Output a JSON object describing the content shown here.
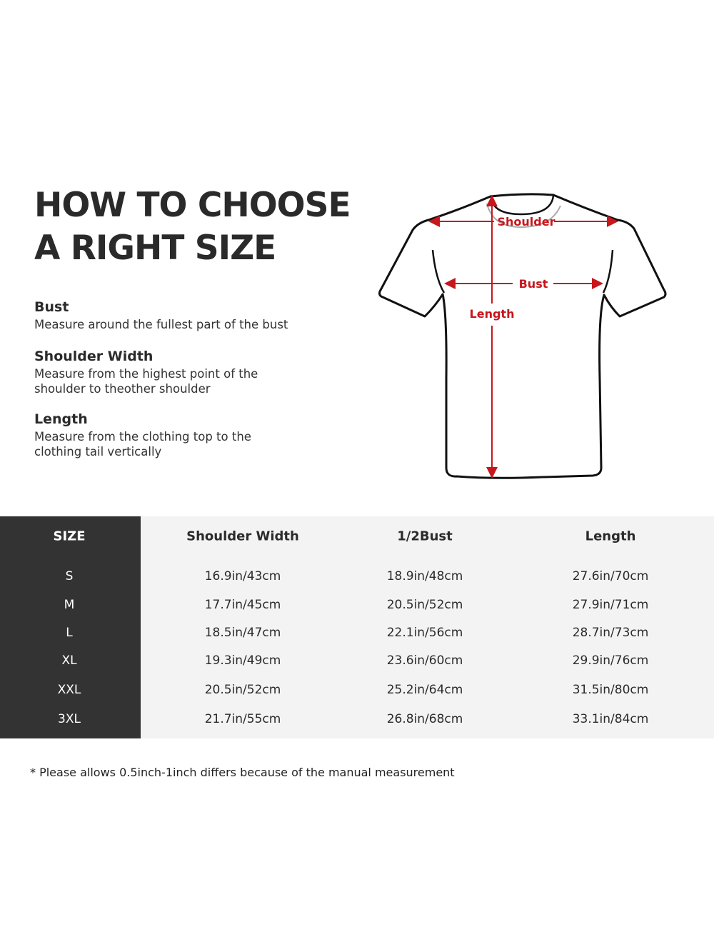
{
  "title": {
    "line1": "HOW TO CHOOSE",
    "line2": "A RIGHT SIZE"
  },
  "guide": [
    {
      "heading": "Bust",
      "text": "Measure around the fullest part of the bust"
    },
    {
      "heading": "Shoulder Width",
      "text": "Measure from the highest point of the shoulder to theother shoulder"
    },
    {
      "heading": "Length",
      "text": "Measure from the clothing top to the clothing tail vertically"
    }
  ],
  "diagram": {
    "shoulder_label": "Shoulder",
    "bust_label": "Bust",
    "length_label": "Length",
    "arrow_color": "#c8161d"
  },
  "table": {
    "headers": [
      "SIZE",
      "Shoulder Width",
      "1/2Bust",
      "Length"
    ],
    "rows": [
      [
        "S",
        "16.9in/43cm",
        "18.9in/48cm",
        "27.6in/70cm"
      ],
      [
        "M",
        "17.7in/45cm",
        "20.5in/52cm",
        "27.9in/71cm"
      ],
      [
        "L",
        "18.5in/47cm",
        "22.1in/56cm",
        "28.7in/73cm"
      ],
      [
        "XL",
        "19.3in/49cm",
        "23.6in/60cm",
        "29.9in/76cm"
      ],
      [
        "XXL",
        "20.5in/52cm",
        "25.2in/64cm",
        "31.5in/80cm"
      ],
      [
        "3XL",
        "21.7in/55cm",
        "26.8in/68cm",
        "33.1in/84cm"
      ]
    ]
  },
  "note": "* Please allows 0.5inch-1inch differs because of the  manual measurement"
}
